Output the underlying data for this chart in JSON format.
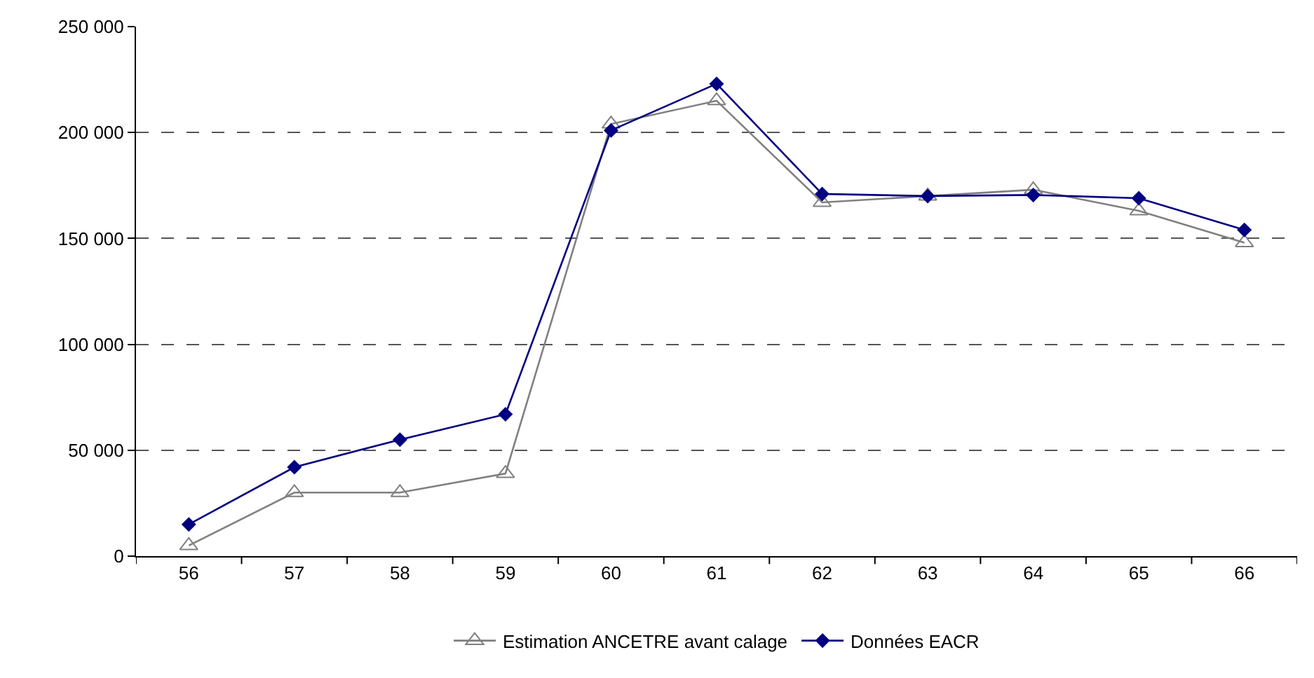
{
  "chart_data": {
    "type": "line",
    "categories": [
      "56",
      "57",
      "58",
      "59",
      "60",
      "61",
      "62",
      "63",
      "64",
      "65",
      "66"
    ],
    "series": [
      {
        "name": "Estimation ANCETRE avant calage",
        "color": "#808080",
        "marker": "triangle",
        "values": [
          5000,
          30000,
          30000,
          39000,
          204000,
          215000,
          167000,
          170000,
          173000,
          163000,
          148000
        ]
      },
      {
        "name": "Données EACR",
        "color": "#000080",
        "marker": "diamond",
        "values": [
          15000,
          42000,
          55000,
          67000,
          201000,
          223000,
          171000,
          170000,
          170500,
          169000,
          154000
        ]
      }
    ],
    "ylim": [
      0,
      250000
    ],
    "yticks": [
      {
        "value": 0,
        "label": "0"
      },
      {
        "value": 50000,
        "label": "50 000"
      },
      {
        "value": 100000,
        "label": "100 000"
      },
      {
        "value": 150000,
        "label": "150 000"
      },
      {
        "value": 200000,
        "label": "200 000"
      },
      {
        "value": 250000,
        "label": "250 000"
      }
    ],
    "grid": "y",
    "legend": "bottom",
    "line_style": "solid"
  }
}
